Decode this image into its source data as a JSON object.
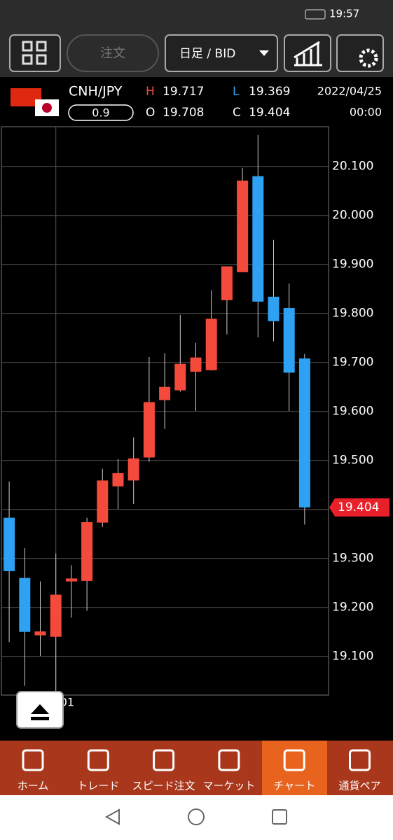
{
  "status_bar": {
    "time": "19:57"
  },
  "toolbar": {
    "order": "注文",
    "period": "日足 / BID"
  },
  "info": {
    "pair": "CNH/JPY",
    "spread": "0.9",
    "high_label": "H",
    "high": "19.717",
    "low_label": "L",
    "low": "19.369",
    "open_label": "O",
    "open": "19.708",
    "close_label": "C",
    "close": "19.404",
    "date": "2022/04/25",
    "time": "00:00"
  },
  "chart_data": {
    "type": "candlestick",
    "categories": [
      null,
      null,
      null,
      "01",
      null,
      null,
      null,
      null,
      null,
      null,
      null,
      null,
      null,
      null,
      null,
      null,
      null,
      null,
      null,
      null
    ],
    "open": [
      19.383,
      19.26,
      19.143,
      19.14,
      19.253,
      19.254,
      19.373,
      19.447,
      19.459,
      19.506,
      19.623,
      19.643,
      19.681,
      19.684,
      19.827,
      19.884,
      20.08,
      19.834,
      19.811,
      19.708
    ],
    "high": [
      19.457,
      19.321,
      19.253,
      19.31,
      19.286,
      19.383,
      19.483,
      19.503,
      19.547,
      19.711,
      19.719,
      19.797,
      19.74,
      19.847,
      19.896,
      20.097,
      20.164,
      19.95,
      19.861,
      19.717
    ],
    "low": [
      19.129,
      19.04,
      19.101,
      19.026,
      19.179,
      19.193,
      19.364,
      19.401,
      19.411,
      19.497,
      19.564,
      19.64,
      19.601,
      19.683,
      19.757,
      19.884,
      19.751,
      19.743,
      19.601,
      19.369
    ],
    "close": [
      19.274,
      19.15,
      19.151,
      19.226,
      19.259,
      19.374,
      19.459,
      19.474,
      19.504,
      19.619,
      19.65,
      19.697,
      19.71,
      19.789,
      19.896,
      20.071,
      19.824,
      19.784,
      19.679,
      19.404
    ],
    "up_color": "#f44a3b",
    "down_color": "#2ea1f2",
    "ylim": [
      19.021,
      20.181
    ],
    "yticks": [
      {
        "value": 19.1,
        "label": "19.100"
      },
      {
        "value": 19.2,
        "label": "19.200"
      },
      {
        "value": 19.3,
        "label": "19.300"
      },
      19.4,
      {
        "value": 19.5,
        "label": "19.500"
      },
      {
        "value": 19.6,
        "label": "19.600"
      },
      {
        "value": 19.7,
        "label": "19.700"
      },
      {
        "value": 19.8,
        "label": "19.800"
      },
      {
        "value": 19.9,
        "label": "19.900"
      },
      {
        "value": 20.0,
        "label": "20.000"
      },
      {
        "value": 20.1,
        "label": "20.100"
      }
    ],
    "last_price": 19.404,
    "grid": true
  },
  "nav": [
    "ホーム",
    "トレード",
    "スピード注文",
    "マーケット",
    "チャート",
    "通貨ペア"
  ]
}
